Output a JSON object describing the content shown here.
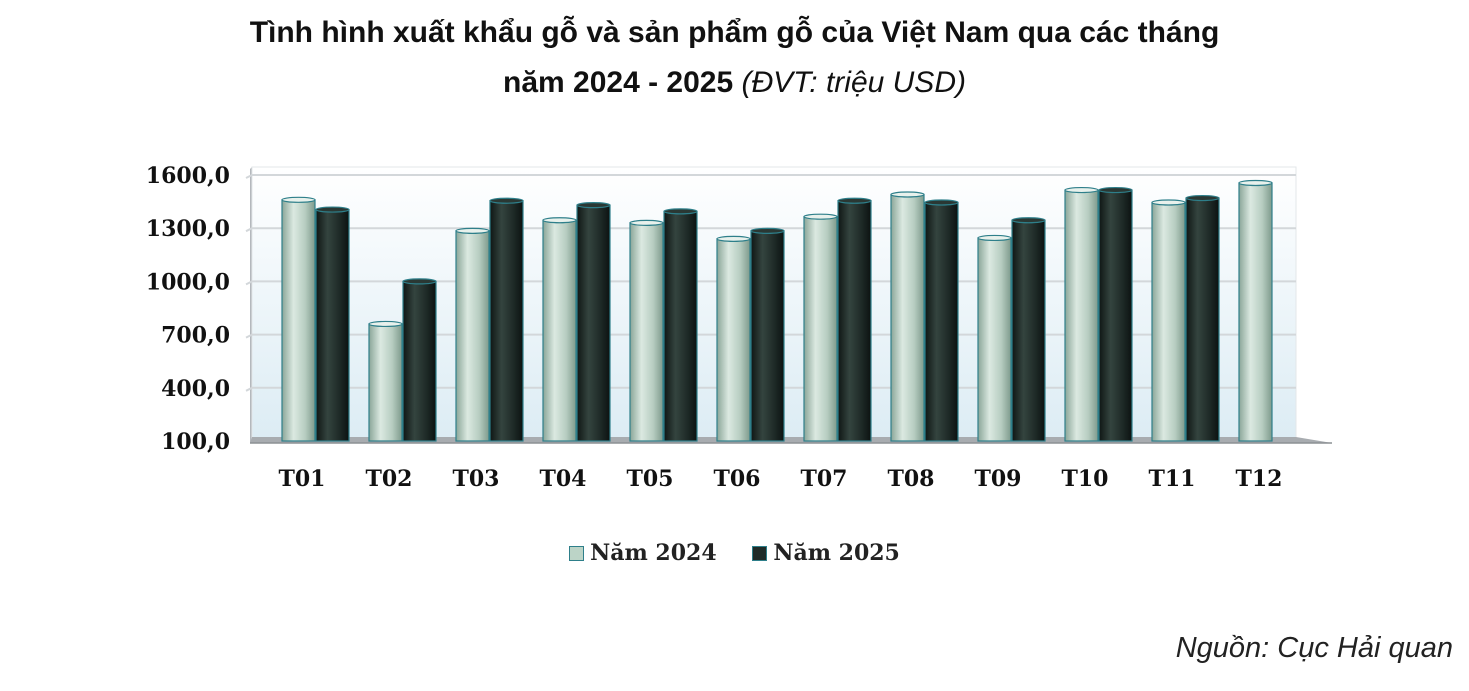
{
  "title": {
    "line1": "Tình hình xuất khẩu gỗ và sản phẩm gỗ của Việt Nam qua các tháng",
    "line2_main": "năm 2024 - 2025",
    "line2_unit": "(ĐVT: triệu USD)"
  },
  "chart_data": {
    "type": "bar",
    "title": "Tình hình xuất khẩu gỗ và sản phẩm gỗ của Việt Nam qua các tháng năm 2024 - 2025",
    "unit": "ĐVT: triệu USD",
    "categories": [
      "T01",
      "T02",
      "T03",
      "T04",
      "T05",
      "T06",
      "T07",
      "T08",
      "T09",
      "T10",
      "T11",
      "T12"
    ],
    "series": [
      {
        "name": "Năm 2024",
        "color": "#bcd4c7",
        "values": [
          1460,
          760,
          1285,
          1345,
          1330,
          1240,
          1365,
          1490,
          1245,
          1515,
          1445,
          1555
        ]
      },
      {
        "name": "Năm 2025",
        "color": "#1f2b28",
        "values": [
          1405,
          1000,
          1455,
          1430,
          1395,
          1285,
          1455,
          1445,
          1345,
          1515,
          1470,
          null
        ]
      }
    ],
    "yticks": [
      "100,0",
      "400,0",
      "700,0",
      "1000,0",
      "1300,0",
      "1600,0"
    ],
    "ylim": [
      100,
      1600
    ],
    "grid": true,
    "legend": "bottom"
  },
  "source": "Nguồn: Cục Hải quan"
}
